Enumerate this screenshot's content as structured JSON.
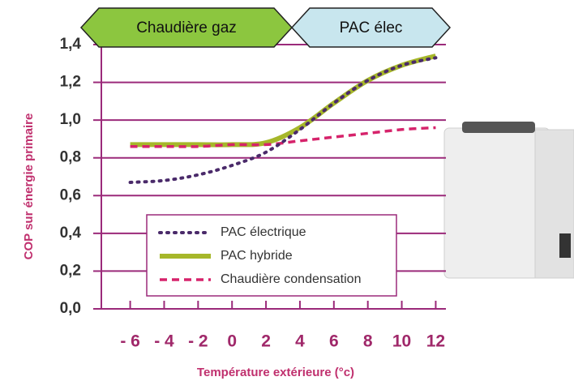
{
  "chart_data": {
    "type": "line",
    "x_label": "Température extérieure (°c)",
    "y_label": "COP sur énergie primaire",
    "annotations": [
      {
        "text": "Chaudière gaz",
        "color": "#8cc63f"
      },
      {
        "text": "PAC élec",
        "color": "#c8e6ee"
      }
    ],
    "x": [
      -6,
      -4,
      -2,
      0,
      2,
      4,
      6,
      8,
      10,
      12
    ],
    "series": [
      {
        "name": "PAC électrique",
        "color": "#4a2a6a",
        "style": "dotted",
        "values": [
          0.67,
          0.68,
          0.71,
          0.76,
          0.83,
          0.95,
          1.09,
          1.21,
          1.29,
          1.33
        ]
      },
      {
        "name": "PAC hybride",
        "color": "#a6b72a",
        "style": "solid",
        "values": [
          0.87,
          0.87,
          0.87,
          0.87,
          0.88,
          0.96,
          1.09,
          1.21,
          1.29,
          1.34
        ]
      },
      {
        "name": "Chaudière condensation",
        "color": "#d6236b",
        "style": "dashed",
        "values": [
          0.86,
          0.86,
          0.86,
          0.87,
          0.87,
          0.89,
          0.91,
          0.93,
          0.95,
          0.96
        ]
      }
    ],
    "xlim": [
      -7.7,
      12.6
    ],
    "ylim": [
      0,
      1.4
    ],
    "xticks": [
      {
        "value": -6,
        "label": "- 6"
      },
      {
        "value": -4,
        "label": "- 4"
      },
      {
        "value": -2,
        "label": "- 2"
      },
      0,
      2,
      4,
      6,
      8,
      10,
      12
    ],
    "yticks": [
      {
        "value": 0,
        "label": "0,0"
      },
      {
        "value": 0.2,
        "label": "0,2"
      },
      {
        "value": 0.4,
        "label": "0,4"
      },
      {
        "value": 0.6,
        "label": "0,6"
      },
      {
        "value": 0.8,
        "label": "0,8"
      },
      {
        "value": 1.0,
        "label": "1,0"
      },
      {
        "value": 1.2,
        "label": "1,2"
      },
      {
        "value": 1.4,
        "label": "1,4"
      }
    ],
    "grid": true
  }
}
